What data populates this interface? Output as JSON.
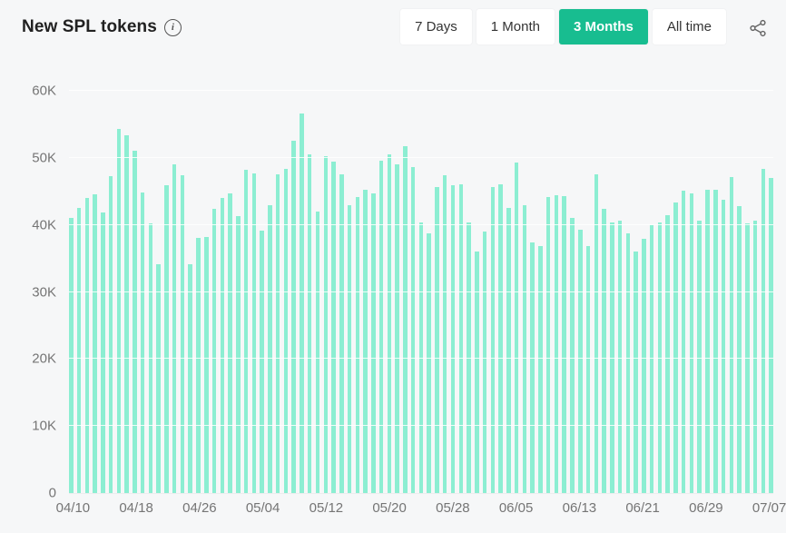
{
  "header": {
    "title": "New SPL tokens",
    "info_icon": "info-icon"
  },
  "toolbar": {
    "tabs": [
      {
        "label": "7 Days",
        "active": false
      },
      {
        "label": "1 Month",
        "active": false
      },
      {
        "label": "3 Months",
        "active": true
      },
      {
        "label": "All time",
        "active": false
      }
    ],
    "share_icon": "share-icon"
  },
  "colors": {
    "accent_green": "#18bd90",
    "bar_teal": "#8ceed2",
    "background": "#f6f7f8",
    "title_text": "#212121",
    "axis_text": "#757575",
    "tab_text": "#333333"
  },
  "chart_data": {
    "type": "bar",
    "title": "New SPL tokens",
    "ylabel": "",
    "xlabel": "",
    "ylim": [
      0,
      60000
    ],
    "ytick_values": [
      0,
      10000,
      20000,
      30000,
      40000,
      50000,
      60000
    ],
    "ytick_labels": [
      "0",
      "10K",
      "20K",
      "30K",
      "40K",
      "50K",
      "60K"
    ],
    "xtick_every": 8,
    "grid": "horizontal-faint",
    "legend": "none",
    "x": [
      "04/10",
      "04/11",
      "04/12",
      "04/13",
      "04/14",
      "04/15",
      "04/16",
      "04/17",
      "04/18",
      "04/19",
      "04/20",
      "04/21",
      "04/22",
      "04/23",
      "04/24",
      "04/25",
      "04/26",
      "04/27",
      "04/28",
      "04/29",
      "04/30",
      "05/01",
      "05/02",
      "05/03",
      "05/04",
      "05/05",
      "05/06",
      "05/07",
      "05/08",
      "05/09",
      "05/10",
      "05/11",
      "05/12",
      "05/13",
      "05/14",
      "05/15",
      "05/16",
      "05/17",
      "05/18",
      "05/19",
      "05/20",
      "05/21",
      "05/22",
      "05/23",
      "05/24",
      "05/25",
      "05/26",
      "05/27",
      "05/28",
      "05/29",
      "05/30",
      "05/31",
      "06/01",
      "06/02",
      "06/03",
      "06/04",
      "06/05",
      "06/06",
      "06/07",
      "06/08",
      "06/09",
      "06/10",
      "06/11",
      "06/12",
      "06/13",
      "06/14",
      "06/15",
      "06/16",
      "06/17",
      "06/18",
      "06/19",
      "06/20",
      "06/21",
      "06/22",
      "06/23",
      "06/24",
      "06/25",
      "06/26",
      "06/27",
      "06/28",
      "06/29",
      "06/30",
      "07/01",
      "07/02",
      "07/03",
      "07/04",
      "07/05",
      "07/06",
      "07/07"
    ],
    "values": [
      41100,
      42600,
      44000,
      44500,
      41900,
      47300,
      54300,
      53400,
      51000,
      44800,
      40200,
      34200,
      45900,
      49000,
      47400,
      34100,
      38100,
      38200,
      42400,
      44000,
      44700,
      41300,
      48200,
      47700,
      39200,
      42900,
      47500,
      48400,
      52500,
      56600,
      50500,
      42000,
      50200,
      49400,
      47600,
      42900,
      44200,
      45300,
      44700,
      49600,
      50500,
      49100,
      51800,
      48600,
      40400,
      38800,
      45700,
      47400,
      45900,
      46000,
      40400,
      36000,
      39000,
      45700,
      46000,
      42500,
      49300,
      42900,
      37400,
      36900,
      44100,
      44400,
      44300,
      41000,
      39300,
      36900,
      47600,
      42400,
      40400,
      40700,
      38800,
      36000,
      37900,
      39900,
      40400,
      41500,
      43400,
      45100,
      44700,
      40700,
      45200,
      45300,
      43800,
      47100,
      42800,
      40200,
      40700,
      48400,
      47000
    ]
  }
}
